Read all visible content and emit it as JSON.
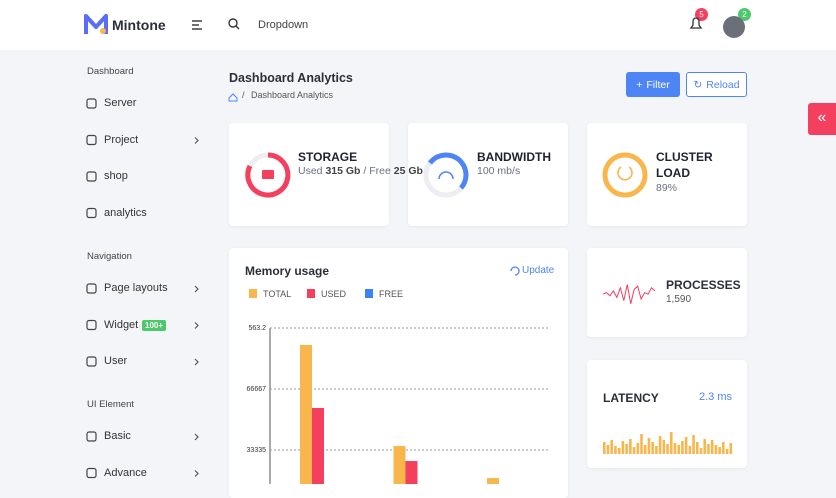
{
  "header": {
    "brand": "Mintone",
    "search": "Dropdown",
    "notification_count": "5",
    "profile_badge": "2"
  },
  "sidebar": [
    {
      "title": "Dashboard",
      "items": [
        {
          "label": "Server"
        },
        {
          "label": "Project",
          "submenu": true
        },
        {
          "label": "shop"
        },
        {
          "label": "analytics"
        }
      ]
    },
    {
      "title": "Navigation",
      "items": [
        {
          "label": "Page layouts",
          "submenu": true
        },
        {
          "label": "Widget",
          "badge": "100+",
          "submenu": true
        },
        {
          "label": "User",
          "submenu": true
        }
      ]
    },
    {
      "title": "UI Element",
      "items": [
        {
          "label": "Basic",
          "submenu": true
        },
        {
          "label": "Advance",
          "submenu": true
        }
      ]
    }
  ],
  "page": {
    "title": "Dashboard Analytics",
    "breadcrumb": "Dashboard Analytics",
    "buttons": [
      "Filter",
      "Reload"
    ]
  },
  "stats": [
    {
      "title": "STORAGE",
      "detail": [
        {
          "text": "Used "
        },
        {
          "text": "315 Gb",
          "bold": true
        },
        {
          "text": " / "
        },
        {
          "text": "Free "
        },
        {
          "text": "25 Gb",
          "bold": true
        }
      ]
    },
    {
      "title": "BANDWIDTH",
      "detail": [
        {
          "text": "100 mb/s"
        }
      ]
    },
    {
      "title": "CLUSTER LOAD",
      "detail": [
        {
          "text": "89%"
        }
      ]
    }
  ],
  "memory_chart": {
    "type": "bar",
    "title": "Memory usage",
    "action": "Update",
    "categories": [
      null,
      null,
      null
    ],
    "series": [
      {
        "name": "TOTAL",
        "color": "#f8b64c",
        "values": [
          90700,
          35500,
          18000
        ]
      },
      {
        "name": "USED",
        "color": "#f43f5e",
        "values": [
          56300,
          27300,
          null
        ]
      },
      {
        "name": "FREE",
        "color": "#3b82f6",
        "values": [
          null,
          null,
          null
        ]
      }
    ],
    "ylim": [
      0,
      100000
    ],
    "yticks": [
      33335,
      66667
    ],
    "y_top_label": "563.2",
    "grid": true
  },
  "processes": {
    "title": "PROCESSES",
    "value": "1,590",
    "sparkline": [
      8,
      9,
      7,
      10,
      6,
      12,
      4,
      14,
      2,
      11,
      13,
      5,
      9,
      8,
      12,
      10
    ]
  },
  "latency": {
    "title": "LATENCY",
    "value": "2.3 ms",
    "bars": [
      12,
      9,
      14,
      8,
      6,
      13,
      10,
      15,
      7,
      11,
      20,
      9,
      16,
      12,
      8,
      18,
      14,
      10,
      22,
      11,
      9,
      13,
      17,
      8,
      19,
      12,
      6,
      15,
      10,
      14,
      9,
      7,
      12,
      5,
      11
    ]
  }
}
